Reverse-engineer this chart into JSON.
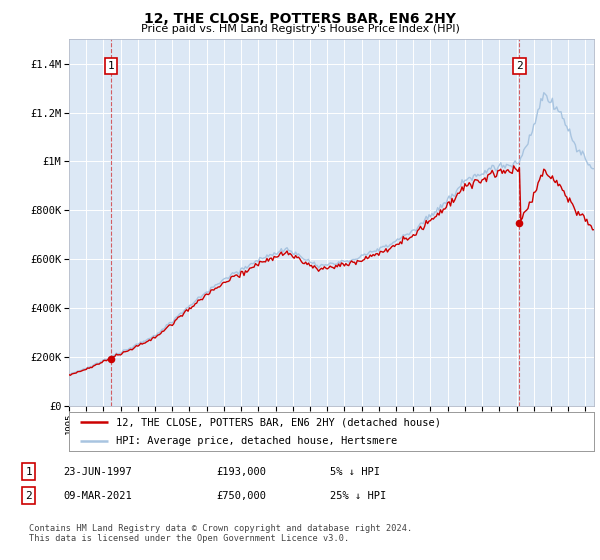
{
  "title": "12, THE CLOSE, POTTERS BAR, EN6 2HY",
  "subtitle": "Price paid vs. HM Land Registry's House Price Index (HPI)",
  "legend_line1": "12, THE CLOSE, POTTERS BAR, EN6 2HY (detached house)",
  "legend_line2": "HPI: Average price, detached house, Hertsmere",
  "annotation1_label": "1",
  "annotation1_date": "23-JUN-1997",
  "annotation1_price": 193000,
  "annotation1_pct": "5%",
  "annotation1_note": "↓ HPI",
  "annotation2_label": "2",
  "annotation2_date": "09-MAR-2021",
  "annotation2_price": 750000,
  "annotation2_pct": "25%",
  "annotation2_note": "↓ HPI",
  "footer": "Contains HM Land Registry data © Crown copyright and database right 2024.\nThis data is licensed under the Open Government Licence v3.0.",
  "hpi_color": "#a8c4e0",
  "sale_color": "#cc0000",
  "dashed_color": "#cc0000",
  "bg_color": "#dce8f5",
  "grid_color": "#ffffff",
  "ylim": [
    0,
    1500000
  ],
  "xlim_start": 1995.0,
  "xlim_end": 2025.5,
  "sale_year_1": 1997.458,
  "sale_price_1": 193000,
  "sale_year_2": 2021.167,
  "sale_price_2": 750000,
  "hpi_at_sale1": 204000,
  "hpi_at_sale2": 1000000
}
